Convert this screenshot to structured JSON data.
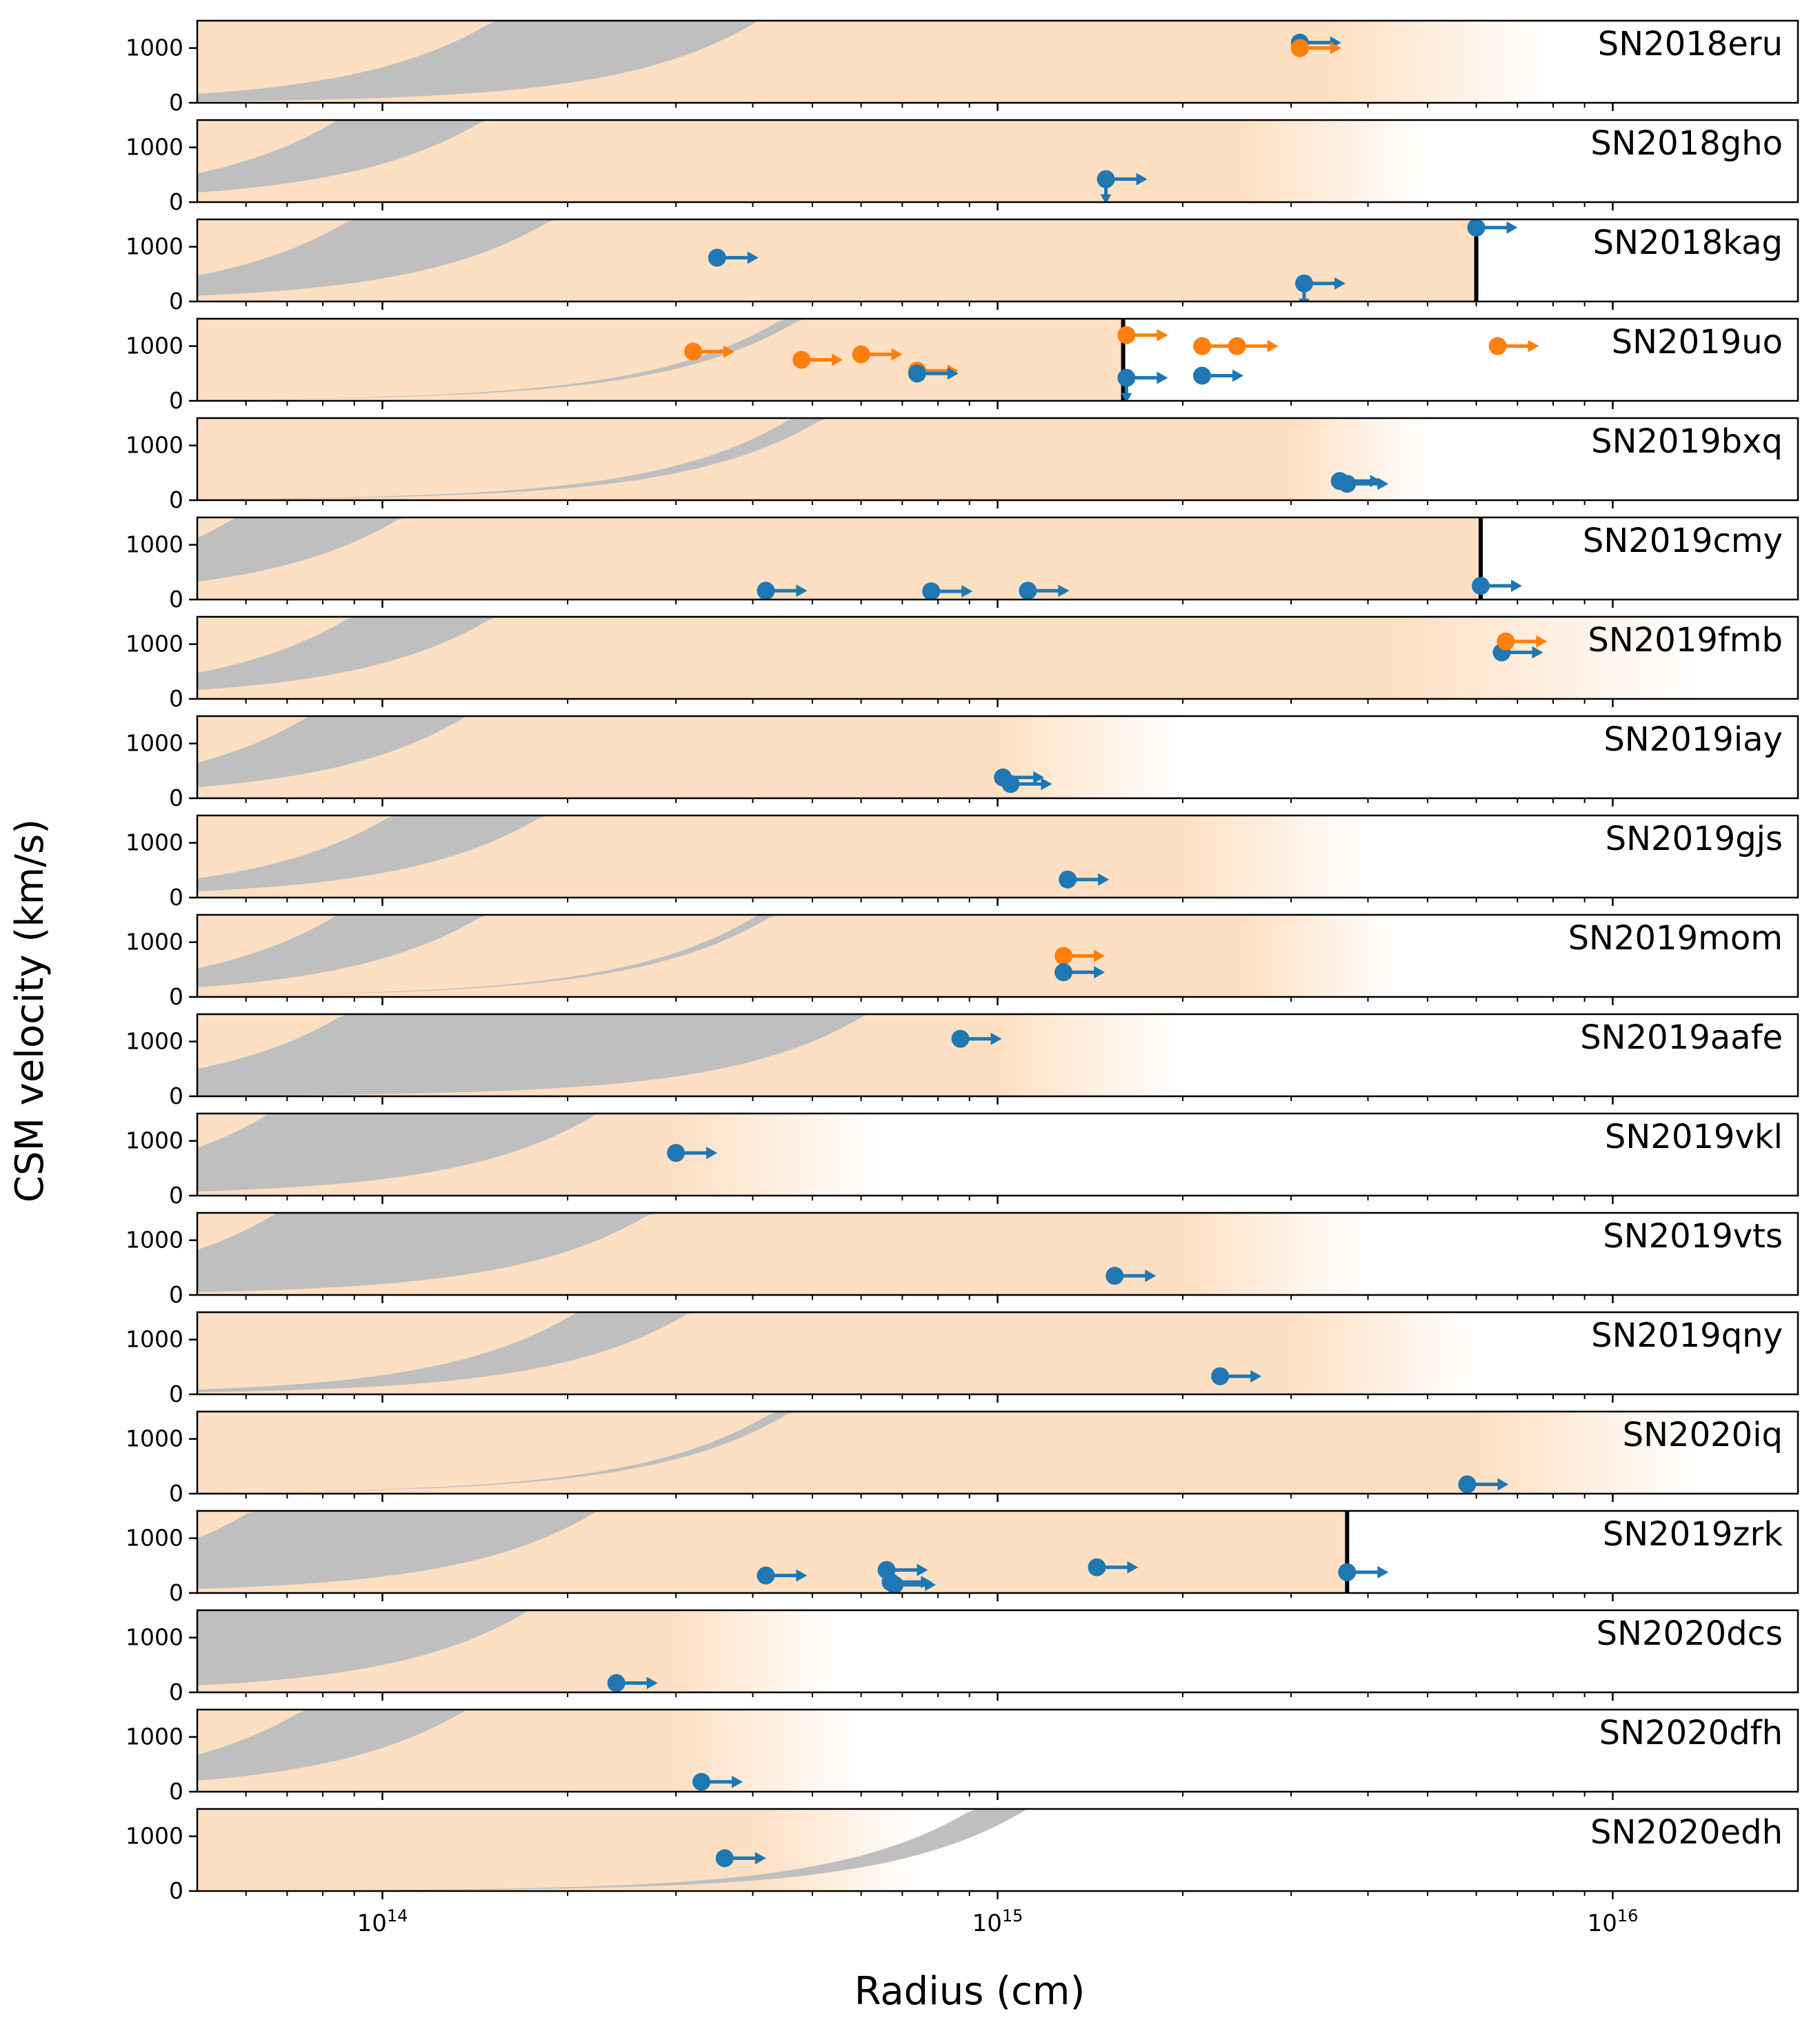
{
  "chart_data": {
    "type": "scatter",
    "layout": "19 stacked panels sharing a logarithmic x axis",
    "xlabel": "Radius (cm)",
    "ylabel": "CSM velocity (km/s)",
    "xscale": "log",
    "xlim": [
      50000000000000.0,
      2e+16
    ],
    "xticks": [
      {
        "value": 100000000000000.0,
        "base": "10",
        "exp": "14"
      },
      {
        "value": 1000000000000000.0,
        "base": "10",
        "exp": "15"
      },
      {
        "value": 1e+16,
        "base": "10",
        "exp": "16"
      }
    ],
    "ylim": [
      0,
      1500
    ],
    "yticks": [
      {
        "value": 0,
        "label": "0"
      },
      {
        "value": 1000,
        "label": "1000"
      }
    ],
    "colors": {
      "blue": "#1f77b4",
      "orange": "#ff7f0e",
      "shade": "#fde0c3",
      "band": "#bfbfbf",
      "limit_line": "#000000"
    },
    "panels": [
      {
        "name": "SN2018eru",
        "shade_end": 3500000000000000.0,
        "fade_end": 8000000000000000.0,
        "band_lo_v100": 90,
        "band_hi_v100": 650,
        "band_lo_cap": 2000,
        "band_hi_cap": 2000,
        "points": [
          {
            "r": 3100000000000000.0,
            "v": 1100,
            "c": "blue"
          },
          {
            "r": 3100000000000000.0,
            "v": 1000,
            "c": "orange"
          }
        ]
      },
      {
        "name": "SN2018gho",
        "shade_end": 2500000000000000.0,
        "fade_end": 5000000000000000.0,
        "band_lo_v100": 700,
        "band_hi_v100": 2100,
        "band_lo_cap": 2000,
        "band_hi_cap": 2000,
        "points": [
          {
            "r": 1500000000000000.0,
            "v": 420,
            "c": "blue",
            "down": true
          }
        ]
      },
      {
        "name": "SN2018kag",
        "shade_end": 6000000000000000.0,
        "fade_end": 6000000000000000.0,
        "vline": 6000000000000000.0,
        "band_lo_v100": 420,
        "band_hi_v100": 1900,
        "band_lo_cap": 1500,
        "band_hi_cap": 2000,
        "points": [
          {
            "r": 350000000000000.0,
            "v": 800,
            "c": "blue"
          },
          {
            "r": 6000000000000000.0,
            "v": 1350,
            "c": "blue"
          },
          {
            "r": 3150000000000000.0,
            "v": 330,
            "c": "blue",
            "down": true
          }
        ]
      },
      {
        "name": "SN2019uo",
        "shade_end": 1600000000000000.0,
        "fade_end": 1600000000000000.0,
        "vline": 1600000000000000.0,
        "band_lo_v100": 65,
        "band_hi_v100": 75,
        "band_lo_cap": 2000,
        "band_hi_cap": 2000,
        "points": [
          {
            "r": 320000000000000.0,
            "v": 900,
            "c": "orange"
          },
          {
            "r": 480000000000000.0,
            "v": 750,
            "c": "orange"
          },
          {
            "r": 600000000000000.0,
            "v": 850,
            "c": "orange"
          },
          {
            "r": 740000000000000.0,
            "v": 550,
            "c": "orange"
          },
          {
            "r": 740000000000000.0,
            "v": 500,
            "c": "blue"
          },
          {
            "r": 1620000000000000.0,
            "v": 1200,
            "c": "orange"
          },
          {
            "r": 1620000000000000.0,
            "v": 420,
            "c": "blue",
            "down": true
          },
          {
            "r": 2150000000000000.0,
            "v": 1000,
            "c": "orange"
          },
          {
            "r": 2150000000000000.0,
            "v": 460,
            "c": "blue"
          },
          {
            "r": 2450000000000000.0,
            "v": 1000,
            "c": "orange"
          },
          {
            "r": 6500000000000000.0,
            "v": 1000,
            "c": "orange"
          }
        ]
      },
      {
        "name": "SN2019bxq",
        "shade_end": 3000000000000000.0,
        "fade_end": 5000000000000000.0,
        "band_lo_v100": 55,
        "band_hi_v100": 70,
        "band_lo_cap": 2000,
        "band_hi_cap": 2000,
        "points": [
          {
            "r": 3600000000000000.0,
            "v": 350,
            "c": "blue"
          },
          {
            "r": 3700000000000000.0,
            "v": 300,
            "c": "blue"
          }
        ]
      },
      {
        "name": "SN2019cmy",
        "shade_end": 6100000000000000.0,
        "fade_end": 6100000000000000.0,
        "vline": 6100000000000000.0,
        "band_lo_v100": 1300,
        "band_hi_v100": 4500,
        "band_lo_cap": 1500,
        "band_hi_cap": 2000,
        "points": [
          {
            "r": 420000000000000.0,
            "v": 160,
            "c": "blue"
          },
          {
            "r": 780000000000000.0,
            "v": 150,
            "c": "blue"
          },
          {
            "r": 1120000000000000.0,
            "v": 160,
            "c": "blue"
          },
          {
            "r": 6100000000000000.0,
            "v": 250,
            "c": "blue"
          }
        ]
      },
      {
        "name": "SN2019fmb",
        "shade_end": 4500000000000000.0,
        "fade_end": 1.4e+16,
        "band_lo_v100": 650,
        "band_hi_v100": 1900,
        "band_lo_cap": 2000,
        "band_hi_cap": 2000,
        "points": [
          {
            "r": 6600000000000000.0,
            "v": 850,
            "c": "blue"
          },
          {
            "r": 6700000000000000.0,
            "v": 1050,
            "c": "orange"
          }
        ]
      },
      {
        "name": "SN2019iay",
        "shade_end": 1000000000000000.0,
        "fade_end": 2000000000000000.0,
        "band_lo_v100": 800,
        "band_hi_v100": 2600,
        "band_lo_cap": 2000,
        "band_hi_cap": 2000,
        "points": [
          {
            "r": 1020000000000000.0,
            "v": 380,
            "c": "blue"
          },
          {
            "r": 1050000000000000.0,
            "v": 260,
            "c": "blue"
          }
        ]
      },
      {
        "name": "SN2019gjs",
        "shade_end": 2000000000000000.0,
        "fade_end": 4000000000000000.0,
        "band_lo_v100": 450,
        "band_hi_v100": 1400,
        "band_lo_cap": 2000,
        "band_hi_cap": 2000,
        "points": [
          {
            "r": 1300000000000000.0,
            "v": 330,
            "c": "blue"
          }
        ]
      },
      {
        "name": "SN2019mom",
        "shade_end": 2500000000000000.0,
        "fade_end": 4500000000000000.0,
        "band_lo_v100": 80,
        "band_hi_v100": 90,
        "band_lo_cap": 2000,
        "band_hi_cap": 2000,
        "band2_lo_v100": 700,
        "band2_hi_v100": 2100,
        "points": [
          {
            "r": 1280000000000000.0,
            "v": 750,
            "c": "orange"
          },
          {
            "r": 1280000000000000.0,
            "v": 450,
            "c": "blue"
          }
        ]
      },
      {
        "name": "SN2019aafe",
        "shade_end": 1000000000000000.0,
        "fade_end": 2000000000000000.0,
        "band_lo_v100": 40,
        "band_hi_v100": 2000,
        "band_lo_cap": 2000,
        "band_hi_cap": 2000,
        "points": [
          {
            "r": 870000000000000.0,
            "v": 1050,
            "c": "blue"
          }
        ]
      },
      {
        "name": "SN2019vkl",
        "shade_end": 300000000000000.0,
        "fade_end": 650000000000000.0,
        "band_lo_v100": 300,
        "band_hi_v100": 3500,
        "band_lo_cap": 2000,
        "band_hi_cap": 2000,
        "points": [
          {
            "r": 300000000000000.0,
            "v": 780,
            "c": "blue"
          }
        ]
      },
      {
        "name": "SN2019vts",
        "shade_end": 2000000000000000.0,
        "fade_end": 4000000000000000.0,
        "band_lo_v100": 200,
        "band_hi_v100": 3300,
        "band_lo_cap": 2000,
        "band_hi_cap": 2000,
        "points": [
          {
            "r": 1550000000000000.0,
            "v": 350,
            "c": "blue"
          }
        ]
      },
      {
        "name": "SN2019qny",
        "shade_end": 3000000000000000.0,
        "fade_end": 6000000000000000.0,
        "band_lo_v100": 150,
        "band_hi_v100": 350,
        "band_lo_cap": 2000,
        "band_hi_cap": 2000,
        "points": [
          {
            "r": 2300000000000000.0,
            "v": 330,
            "c": "blue"
          }
        ]
      },
      {
        "name": "SN2020iq",
        "shade_end": 6000000000000000.0,
        "fade_end": 1.4e+16,
        "band_lo_v100": 70,
        "band_hi_v100": 80,
        "band_lo_cap": 2000,
        "band_hi_cap": 2000,
        "points": [
          {
            "r": 5800000000000000.0,
            "v": 170,
            "c": "blue"
          }
        ]
      },
      {
        "name": "SN2019zrk",
        "shade_end": 3700000000000000.0,
        "fade_end": 3700000000000000.0,
        "vline": 3700000000000000.0,
        "band_lo_v100": 300,
        "band_hi_v100": 4000,
        "band_lo_cap": 2000,
        "band_hi_cap": 2000,
        "points": [
          {
            "r": 420000000000000.0,
            "v": 320,
            "c": "blue"
          },
          {
            "r": 660000000000000.0,
            "v": 420,
            "c": "blue"
          },
          {
            "r": 670000000000000.0,
            "v": 200,
            "c": "blue"
          },
          {
            "r": 680000000000000.0,
            "v": 150,
            "c": "blue"
          },
          {
            "r": 1450000000000000.0,
            "v": 470,
            "c": "blue"
          },
          {
            "r": 3700000000000000.0,
            "v": 380,
            "c": "blue"
          }
        ]
      },
      {
        "name": "SN2020dcs",
        "shade_end": 300000000000000.0,
        "fade_end": 550000000000000.0,
        "band_lo_v100": 500,
        "band_hi_v100": 6000,
        "band_lo_cap": 2000,
        "band_hi_cap": 2000,
        "points": [
          {
            "r": 240000000000000.0,
            "v": 170,
            "c": "blue"
          }
        ]
      },
      {
        "name": "SN2020dfh",
        "shade_end": 300000000000000.0,
        "fade_end": 600000000000000.0,
        "band_lo_v100": 800,
        "band_hi_v100": 2700,
        "band_lo_cap": 2000,
        "band_hi_cap": 2000,
        "points": [
          {
            "r": 330000000000000.0,
            "v": 180,
            "c": "blue"
          }
        ]
      },
      {
        "name": "SN2020edh",
        "shade_end": 400000000000000.0,
        "fade_end": 750000000000000.0,
        "band_lo_v100": 12,
        "band_hi_v100": 18,
        "band_lo_cap": 2000,
        "band_hi_cap": 2000,
        "points": [
          {
            "r": 360000000000000.0,
            "v": 600,
            "c": "blue"
          }
        ]
      }
    ]
  }
}
